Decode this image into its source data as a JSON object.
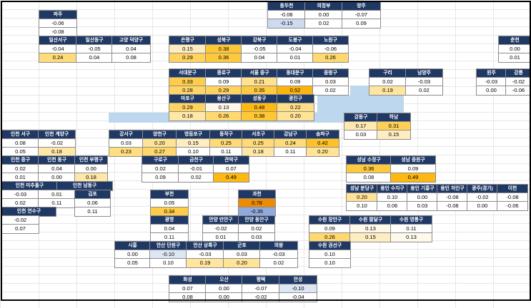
{
  "sheet": {
    "description": "Excel-style regional heatmap of weekly price-change values for Seoul / Gyeonggi / Incheon / Gangwon districts",
    "background": "#ffffff",
    "gridline_color": "#e7e7e7",
    "frame_color": "#000000"
  },
  "colors": {
    "header_bg": "#1F3864",
    "header_text": "#ffffff",
    "cell_border": "#8c8c8c",
    "river": "#BDD7EE",
    "heatmap_stops": [
      [
        -0.35,
        "#8FAADC"
      ],
      [
        -0.1,
        "#DCE6F4"
      ],
      [
        -0.09,
        "#FFFFFF"
      ],
      [
        0.12,
        "#FFFFFF"
      ],
      [
        0.15,
        "#FFEDC2"
      ],
      [
        0.22,
        "#FFDF86"
      ],
      [
        0.32,
        "#FFCE4F"
      ],
      [
        0.45,
        "#FFBE18"
      ],
      [
        0.6,
        "#F9A602"
      ],
      [
        0.78,
        "#EE8B00"
      ]
    ]
  },
  "blocks": [
    {
      "id": "dongducheon-uijeongbu-yangju",
      "headers": [
        "동두천",
        "의정부",
        "양주"
      ],
      "rows": [
        [
          "-0.08",
          "0.00",
          "-0.07"
        ],
        [
          "-0.15",
          "0.02",
          "0.09"
        ]
      ]
    },
    {
      "id": "paju",
      "headers": [
        "파주"
      ],
      "rows": [
        [
          "-0.06"
        ],
        [
          "-0.08"
        ]
      ]
    },
    {
      "id": "goyang",
      "headers": [
        "일산서구",
        "일산동구",
        "고양 덕양구"
      ],
      "rows": [
        [
          "-0.04",
          "-0.05",
          "0.04"
        ],
        [
          "0.24",
          "0.04",
          "0.08"
        ]
      ]
    },
    {
      "id": "seoul-north",
      "headers": [
        "은평구",
        "성북구",
        "강북구",
        "도봉구",
        "노원구"
      ],
      "rows": [
        [
          "0.15",
          "0.38",
          "-0.05",
          "-0.04",
          "-0.06"
        ],
        [
          "0.29",
          "0.36",
          "0.04",
          "0.01",
          "0.26"
        ]
      ]
    },
    {
      "id": "chuncheon",
      "headers": [
        "춘천"
      ],
      "rows": [
        [
          "0.00"
        ],
        [
          "0.01"
        ]
      ]
    },
    {
      "id": "seoul-central",
      "headers": [
        "서대문구",
        "종로구",
        "서울 중구",
        "동대문구",
        "중랑구"
      ],
      "rows": [
        [
          "0.33",
          "0.09",
          "0.21",
          "0.09",
          "0.03"
        ],
        [
          "0.28",
          "0.29",
          "0.35",
          "0.52",
          "0.02"
        ]
      ]
    },
    {
      "id": "guri-namyangju",
      "headers": [
        "구리",
        "남양주"
      ],
      "rows": [
        [
          "0.02",
          "-0.03"
        ],
        [
          "0.19",
          "0.02"
        ]
      ]
    },
    {
      "id": "wonju-gangneung",
      "headers": [
        "원주",
        "강릉"
      ],
      "rows": [
        [
          "-0.03",
          "-0.02"
        ],
        [
          "0.00",
          "-0.06"
        ]
      ]
    },
    {
      "id": "seoul-mapo-line",
      "headers": [
        "마포구",
        "용산구",
        "성동구",
        "광진구"
      ],
      "rows": [
        [
          "0.29",
          "0.13",
          "0.48",
          "0.22"
        ],
        [
          "0.18",
          "0.26",
          "0.38",
          "0.20"
        ]
      ]
    },
    {
      "id": "gangdong-hanam",
      "headers": [
        "강동구",
        "하남"
      ],
      "rows": [
        [
          "0.17",
          "0.31"
        ],
        [
          "0.03",
          "0.15"
        ]
      ]
    },
    {
      "id": "incheon-seogu-gyeyang",
      "headers": [
        "인천 서구",
        "인천 계양구"
      ],
      "rows": [
        [
          "0.08",
          "-0.02"
        ],
        [
          "0.05",
          "0.18"
        ]
      ]
    },
    {
      "id": "seoul-south-line",
      "headers": [
        "강서구",
        "양천구",
        "영등포구",
        "동작구",
        "서초구",
        "강남구",
        "송파구"
      ],
      "rows": [
        [
          "0.03",
          "0.20",
          "0.15",
          "0.25",
          "0.25",
          "0.24",
          "0.42"
        ],
        [
          "0.23",
          "0.27",
          "0.10",
          "0.11",
          "0.18",
          "0.11",
          "0.20"
        ]
      ]
    },
    {
      "id": "incheon-jung-dong-bupyeong",
      "headers": [
        "인천 중구",
        "인천 동구",
        "인천 부평구"
      ],
      "rows": [
        [
          "0.02",
          "0.04",
          "0.00"
        ],
        [
          "0.01",
          "0.00",
          "0.18"
        ]
      ]
    },
    {
      "id": "guro-geumcheon-gwanak",
      "headers": [
        "구로구",
        "금천구",
        "관악구"
      ],
      "rows": [
        [
          "0.02",
          "-0.01",
          "0.07"
        ],
        [
          "0.09",
          "0.02",
          "0.49"
        ]
      ]
    },
    {
      "id": "seongnam-sujeong-jungwon",
      "headers": [
        "성남 수정구",
        "성남 중원구"
      ],
      "rows": [
        [
          "0.36",
          "0.09"
        ],
        [
          "0.08",
          "0.49"
        ]
      ]
    },
    {
      "id": "incheon-michuhol-namdong",
      "headers": [
        "인천 미추홀구",
        "인천 남동구"
      ],
      "rows": [
        [
          "-0.03",
          "0.01"
        ],
        [
          "0.02",
          "0.11"
        ]
      ]
    },
    {
      "id": "gimpo",
      "headers": [
        "김포"
      ],
      "rows": [
        [
          "0.06"
        ],
        [
          "0.11"
        ]
      ]
    },
    {
      "id": "bucheon",
      "headers": [
        "부천"
      ],
      "rows": [
        [
          "0.05"
        ],
        [
          "0.34"
        ]
      ]
    },
    {
      "id": "gwacheon",
      "headers": [
        "과천"
      ],
      "rows": [
        [
          "0.78"
        ],
        [
          "-0.35"
        ]
      ]
    },
    {
      "id": "bundang-yongin-line",
      "headers": [
        "성남 분당구",
        "용인 수지구",
        "용인 기흥구",
        "용인 처인구",
        "광주(경기)",
        "이천"
      ],
      "rows": [
        [
          "0.20",
          "0.10",
          "0.00",
          "-0.08",
          "-0.02",
          "-0.08"
        ],
        [
          "0.10",
          "0.06",
          "0.03",
          "-0.08",
          "0.00",
          "-0.06"
        ]
      ]
    },
    {
      "id": "incheon-yeonsu",
      "headers": [
        "인천 연수구"
      ],
      "rows": [
        [
          "-0.02"
        ],
        [
          "0.07"
        ]
      ]
    },
    {
      "id": "gwangmyeong",
      "headers": [
        "광명"
      ],
      "rows": [
        [
          "0.04"
        ],
        [
          "0.11"
        ]
      ]
    },
    {
      "id": "anyang",
      "headers": [
        "안양 만안구",
        "안양 동안구"
      ],
      "rows": [
        [
          "-0.02",
          "0.02"
        ],
        [
          "0.01",
          "0.03"
        ]
      ]
    },
    {
      "id": "suwon-line",
      "headers": [
        "수원 장안구",
        "수원 팔달구",
        "수원 영통구"
      ],
      "rows": [
        [
          "0.09",
          "0.13",
          "0.11"
        ],
        [
          "0.26",
          "0.15",
          "0.13"
        ]
      ]
    },
    {
      "id": "siheung-ansan-line",
      "headers": [
        "시흥",
        "안산 단원구",
        "안산 상록구",
        "군포",
        "의왕"
      ],
      "rows": [
        [
          "0.00",
          "-0.10",
          "-0.03",
          "0.03",
          "-0.03"
        ],
        [
          "0.05",
          "0.10",
          "0.19",
          "0.20",
          "0.02"
        ]
      ]
    },
    {
      "id": "suwon-gwonseon",
      "headers": [
        "수원 권선구"
      ],
      "rows": [
        [
          "0.10"
        ],
        [
          "0.10"
        ]
      ]
    },
    {
      "id": "hwaseong-line",
      "headers": [
        "화성",
        "오산",
        "평택",
        "안성"
      ],
      "rows": [
        [
          "0.07",
          "0.00",
          "-0.07",
          "-0.10"
        ],
        [
          "0.08",
          "0.00",
          "-0.02",
          "-0.04"
        ]
      ]
    }
  ]
}
